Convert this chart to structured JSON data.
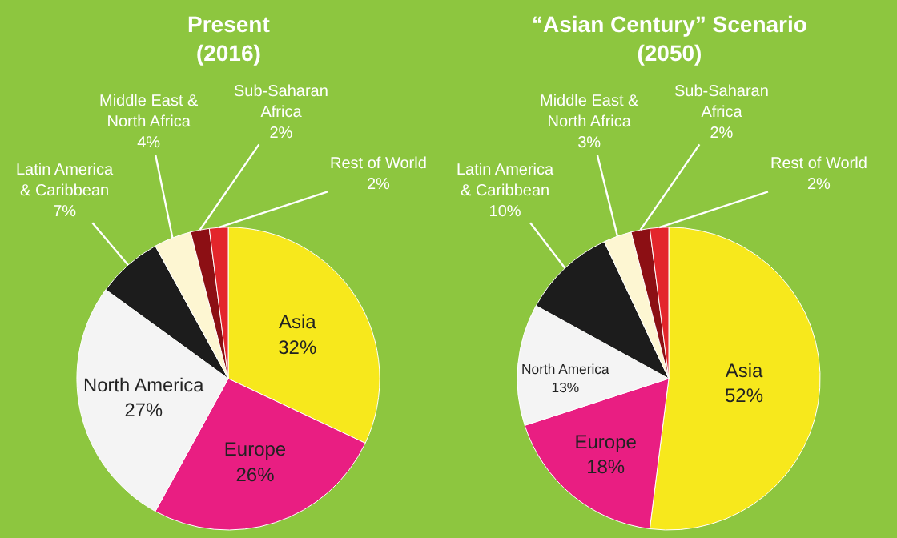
{
  "chart_data": [
    {
      "type": "pie",
      "title": "Present\n(2016)",
      "categories": [
        "Asia",
        "Europe",
        "North America",
        "Latin America & Caribbean",
        "Middle East & North Africa",
        "Sub-Saharan Africa",
        "Rest of World"
      ],
      "values": [
        32,
        26,
        27,
        7,
        4,
        2,
        2
      ],
      "value_labels": [
        "32%",
        "26%",
        "27%",
        "7%",
        "4%",
        "2%",
        "2%"
      ],
      "colors": [
        "#f7e81c",
        "#e91e82",
        "#f4f4f4",
        "#1c1c1c",
        "#fdf6d2",
        "#8c0f14",
        "#e3262c"
      ]
    },
    {
      "type": "pie",
      "title": "“Asian Century” Scenario\n(2050)",
      "categories": [
        "Asia",
        "Europe",
        "North America",
        "Latin America & Caribbean",
        "Middle East & North Africa",
        "Sub-Saharan Africa",
        "Rest of World"
      ],
      "values": [
        52,
        18,
        13,
        10,
        3,
        2,
        2
      ],
      "value_labels": [
        "52%",
        "18%",
        "13%",
        "10%",
        "3%",
        "2%",
        "2%"
      ],
      "colors": [
        "#f7e81c",
        "#e91e82",
        "#f4f4f4",
        "#1c1c1c",
        "#fdf6d2",
        "#8c0f14",
        "#e3262c"
      ]
    }
  ]
}
